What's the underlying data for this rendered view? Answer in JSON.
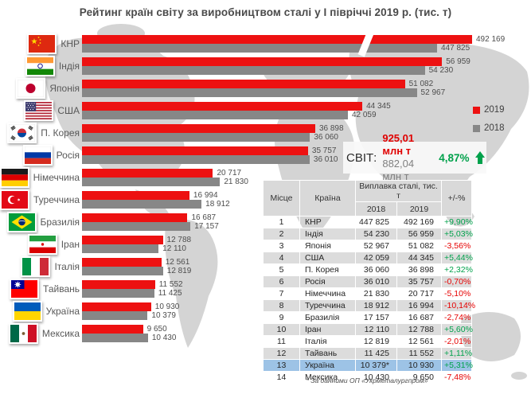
{
  "title": "Рейтинг країн світу за виробництвом сталі у І півріччі 2019 р. (тис. т)",
  "legend": {
    "y2019": "2019",
    "y2018": "2018"
  },
  "world_summary": {
    "label": "СВІТ:",
    "v2019": "925,01 млн т",
    "v2018": "882,04 млн т",
    "change": "4,87%"
  },
  "footnote": "* За данними ОП «Укрметалургпром»",
  "colors": {
    "bar_2019": "#ed1111",
    "bar_2018": "#878787",
    "positive": "#00a14b",
    "negative": "#e60000",
    "ukraine_highlight": "#9dc3e6",
    "table_band": "#dcdcdc",
    "map": "#d4d4d4"
  },
  "chart_data": {
    "type": "bar",
    "orientation": "horizontal",
    "unit": "тис. т",
    "series_names": [
      "2019",
      "2018"
    ],
    "broken_axis_for": "КНР",
    "rows": [
      {
        "country": "КНР",
        "v2019": 492169,
        "v2018": 447825,
        "l2019": "492 169",
        "l2018": "447 825"
      },
      {
        "country": "Індія",
        "v2019": 56959,
        "v2018": 54230,
        "l2019": "56 959",
        "l2018": "54 230"
      },
      {
        "country": "Японія",
        "v2019": 51082,
        "v2018": 52967,
        "l2019": "51 082",
        "l2018": "52 967"
      },
      {
        "country": "США",
        "v2019": 44345,
        "v2018": 42059,
        "l2019": "44 345",
        "l2018": "42 059"
      },
      {
        "country": "П. Корея",
        "v2019": 36898,
        "v2018": 36060,
        "l2019": "36 898",
        "l2018": "36 060"
      },
      {
        "country": "Росія",
        "v2019": 35757,
        "v2018": 36010,
        "l2019": "35 757",
        "l2018": "36 010"
      },
      {
        "country": "Німеччина",
        "v2019": 20717,
        "v2018": 21830,
        "l2019": "20 717",
        "l2018": "21 830"
      },
      {
        "country": "Туреччина",
        "v2019": 16994,
        "v2018": 18912,
        "l2019": "16 994",
        "l2018": "18 912"
      },
      {
        "country": "Бразилія",
        "v2019": 16687,
        "v2018": 17157,
        "l2019": "16 687",
        "l2018": "17 157"
      },
      {
        "country": "Іран",
        "v2019": 12788,
        "v2018": 12110,
        "l2019": "12 788",
        "l2018": "12 110"
      },
      {
        "country": "Італія",
        "v2019": 12561,
        "v2018": 12819,
        "l2019": "12 561",
        "l2018": "12 819"
      },
      {
        "country": "Тайвань",
        "v2019": 11552,
        "v2018": 11425,
        "l2019": "11 552",
        "l2018": "11 425"
      },
      {
        "country": "Україна",
        "v2019": 10930,
        "v2018": 10379,
        "l2019": "10 930",
        "l2018": "10 379"
      },
      {
        "country": "Мексика",
        "v2019": 9650,
        "v2018": 10430,
        "l2019": "9 650",
        "l2018": "10 430"
      }
    ]
  },
  "table": {
    "headers": {
      "place": "Місце",
      "country": "Країна",
      "group": "Виплавка сталі, тис. т",
      "y2018": "2018",
      "y2019": "2019",
      "pct": "+/-%"
    },
    "rows": [
      {
        "place": "1",
        "country": "КНР",
        "y2018": "447 825",
        "y2019": "492 169",
        "pct": "+9,90%"
      },
      {
        "place": "2",
        "country": "Індія",
        "y2018": "54 230",
        "y2019": "56 959",
        "pct": "+5,03%"
      },
      {
        "place": "3",
        "country": "Японія",
        "y2018": "52 967",
        "y2019": "51 082",
        "pct": "-3,56%"
      },
      {
        "place": "4",
        "country": "США",
        "y2018": "42 059",
        "y2019": "44 345",
        "pct": "+5,44%"
      },
      {
        "place": "5",
        "country": "П. Корея",
        "y2018": "36 060",
        "y2019": "36 898",
        "pct": "+2,32%"
      },
      {
        "place": "6",
        "country": "Росія",
        "y2018": "36 010",
        "y2019": "35 757",
        "pct": "-0,70%"
      },
      {
        "place": "7",
        "country": "Німеччина",
        "y2018": "21 830",
        "y2019": "20 717",
        "pct": "-5,10%"
      },
      {
        "place": "8",
        "country": "Туреччина",
        "y2018": "18 912",
        "y2019": "16 994",
        "pct": "-10,14%"
      },
      {
        "place": "9",
        "country": "Бразилія",
        "y2018": "17 157",
        "y2019": "16 687",
        "pct": "-2,74%"
      },
      {
        "place": "10",
        "country": "Іран",
        "y2018": "12 110",
        "y2019": "12 788",
        "pct": "+5,60%"
      },
      {
        "place": "11",
        "country": "Італія",
        "y2018": "12 819",
        "y2019": "12 561",
        "pct": "-2,01%"
      },
      {
        "place": "12",
        "country": "Тайвань",
        "y2018": "11 425",
        "y2019": "11 552",
        "pct": "+1,11%"
      },
      {
        "place": "13",
        "country": "Україна",
        "y2018": "10 379*",
        "y2019": "10 930",
        "pct": "+5,31%"
      },
      {
        "place": "14",
        "country": "Мексика",
        "y2018": "10 430",
        "y2019": "9 650",
        "pct": "-7,48%"
      }
    ]
  }
}
